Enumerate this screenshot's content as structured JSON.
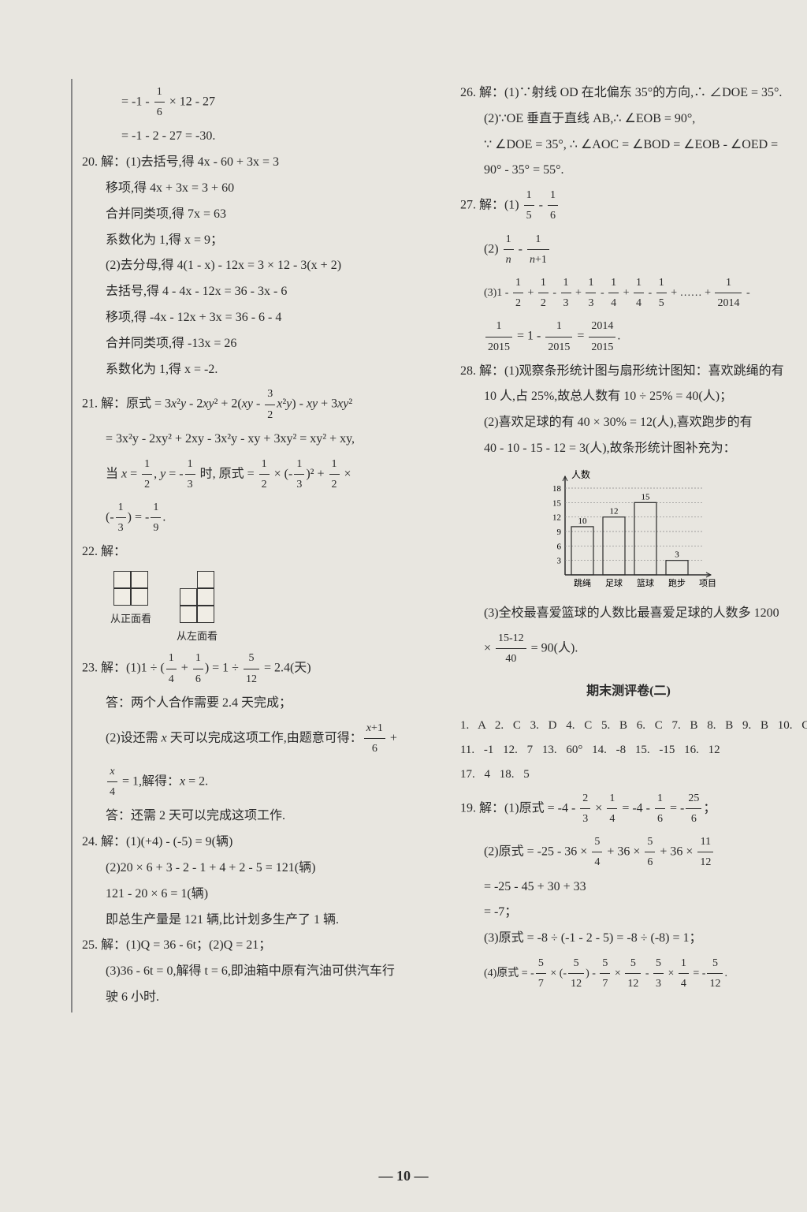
{
  "page_number": "— 10 —",
  "left": {
    "top_eq1": "= -1 - 1/6 × 12 - 27",
    "top_eq2": "= -1 - 2 - 27 = -30.",
    "q20_intro": "20. 解：(1)去括号,得 4x - 60 + 3x = 3",
    "q20_l1": "移项,得 4x + 3x = 3 + 60",
    "q20_l2": "合并同类项,得 7x = 63",
    "q20_l3": "系数化为 1,得 x = 9；",
    "q20_l4": "(2)去分母,得 4(1 - x) - 12x = 3 × 12 - 3(x + 2)",
    "q20_l5": "去括号,得 4 - 4x - 12x = 36 - 3x - 6",
    "q20_l6": "移项,得 -4x - 12x + 3x = 36 - 6 - 4",
    "q20_l7": "合并同类项,得 -13x = 26",
    "q20_l8": "系数化为 1,得 x = -2.",
    "q21_l1": "21. 解：原式 = 3x²y - 2xy² + 2(xy - 3/2 x²y) - xy + 3xy²",
    "q21_l2": "= 3x²y - 2xy² + 2xy - 3x²y - xy + 3xy² = xy² + xy,",
    "q21_l3": "当 x = 1/2, y = -1/3 时, 原式 = 1/2 × (-1/3)² + 1/2 ×",
    "q21_l4": "(-1/3) = -1/9.",
    "q22": "22. 解：",
    "q22_cap1": "从正面看",
    "q22_cap2": "从左面看",
    "q23_l1": "23. 解：(1)1 ÷ (1/4 + 1/6) = 1 ÷ 5/12 = 2.4(天)",
    "q23_l2": "答：两个人合作需要 2.4 天完成；",
    "q23_l3": "(2)设还需 x 天可以完成这项工作,由题意可得：(x+1)/6 +",
    "q23_l4": "x/4 = 1,解得：x = 2.",
    "q23_l5": "答：还需 2 天可以完成这项工作.",
    "q24_l1": "24. 解：(1)(+4) - (-5) = 9(辆)",
    "q24_l2": "(2)20 × 6 + 3 - 2 - 1 + 4 + 2 - 5 = 121(辆)",
    "q24_l3": "121 - 20 × 6 = 1(辆)",
    "q24_l4": "即总生产量是 121 辆,比计划多生产了 1 辆.",
    "q25_l1": "25. 解：(1)Q = 36 - 6t；(2)Q = 21；",
    "q25_l2": "(3)36 - 6t = 0,解得 t = 6,即油箱中原有汽油可供汽车行",
    "q25_l3": "驶 6 小时."
  },
  "right": {
    "q26_l1": "26. 解：(1)∵射线 OD 在北偏东 35°的方向,∴ ∠DOE = 35°.",
    "q26_l2": "(2)∵OE 垂直于直线 AB,∴ ∠EOB = 90°,",
    "q26_l3": "∵ ∠DOE = 35°, ∴ ∠AOC = ∠BOD = ∠EOB - ∠OED =",
    "q26_l4": "90° - 35° = 55°.",
    "q27_l1": "27. 解：(1) 1/5 - 1/6",
    "q27_l2": "(2) 1/n - 1/(n+1)",
    "q27_l3": "(3)1 - 1/2 + 1/2 - 1/3 + 1/3 - 1/4 + 1/4 - 1/5 + …… + 1/2014 -",
    "q27_l4": "1/2015 = 1 - 1/2015 = 2014/2015.",
    "q28_l1": "28. 解：(1)观察条形统计图与扇形统计图知：喜欢跳绳的有",
    "q28_l2": "10 人,占 25%,故总人数有 10 ÷ 25% = 40(人)；",
    "q28_l3": "(2)喜欢足球的有 40 × 30% = 12(人),喜欢跑步的有",
    "q28_l4": "40 - 10 - 15 - 12 = 3(人),故条形统计图补充为：",
    "chart": {
      "y_label": "人数",
      "x_labels": [
        "跳绳",
        "足球",
        "篮球",
        "跑步",
        "项目"
      ],
      "y_ticks": [
        3,
        6,
        9,
        12,
        15,
        18
      ],
      "bars": [
        {
          "label": "跳绳",
          "value": 10,
          "text": "10"
        },
        {
          "label": "足球",
          "value": 12,
          "text": "12"
        },
        {
          "label": "篮球",
          "value": 15,
          "text": "15"
        },
        {
          "label": "跑步",
          "value": 3,
          "text": "3"
        }
      ],
      "axis_color": "#2a2a2a",
      "bar_fill": "none",
      "bar_stroke": "#2a2a2a",
      "grid_dash": "2,2"
    },
    "q28_l5": "(3)全校最喜爱篮球的人数比最喜爱足球的人数多 1200",
    "q28_l6": "× (15-12)/40 = 90(人).",
    "section_title": "期末测评卷(二)",
    "answers1": "1. A  2. C  3. D  4. C  5. B  6. C  7. B  8. B  9. B  10. C",
    "answers2": "11. -1  12. 7  13. 60°  14. -8  15. -15  16. 12",
    "answers3": "17. 4  18. 5",
    "q19_l1": "19. 解：(1)原式 = -4 - 2/3 × 1/4 = -4 - 1/6 = -25/6；",
    "q19_l2": "(2)原式 = -25 - 36 × 5/4 + 36 × 5/6 + 36 × 11/12",
    "q19_l3": "= -25 - 45 + 30 + 33",
    "q19_l4": "= -7；",
    "q19_l5": "(3)原式 = -8 ÷ (-1 - 2 - 5) = -8 ÷ (-8) = 1；",
    "q19_l6": "(4)原式 = -5/7 × (-5/12) - 5/7 × 5/12 - 5/3 × 1/4 = -5/12."
  },
  "background_color": "#e8e6e0",
  "text_color": "#2a2a2a"
}
